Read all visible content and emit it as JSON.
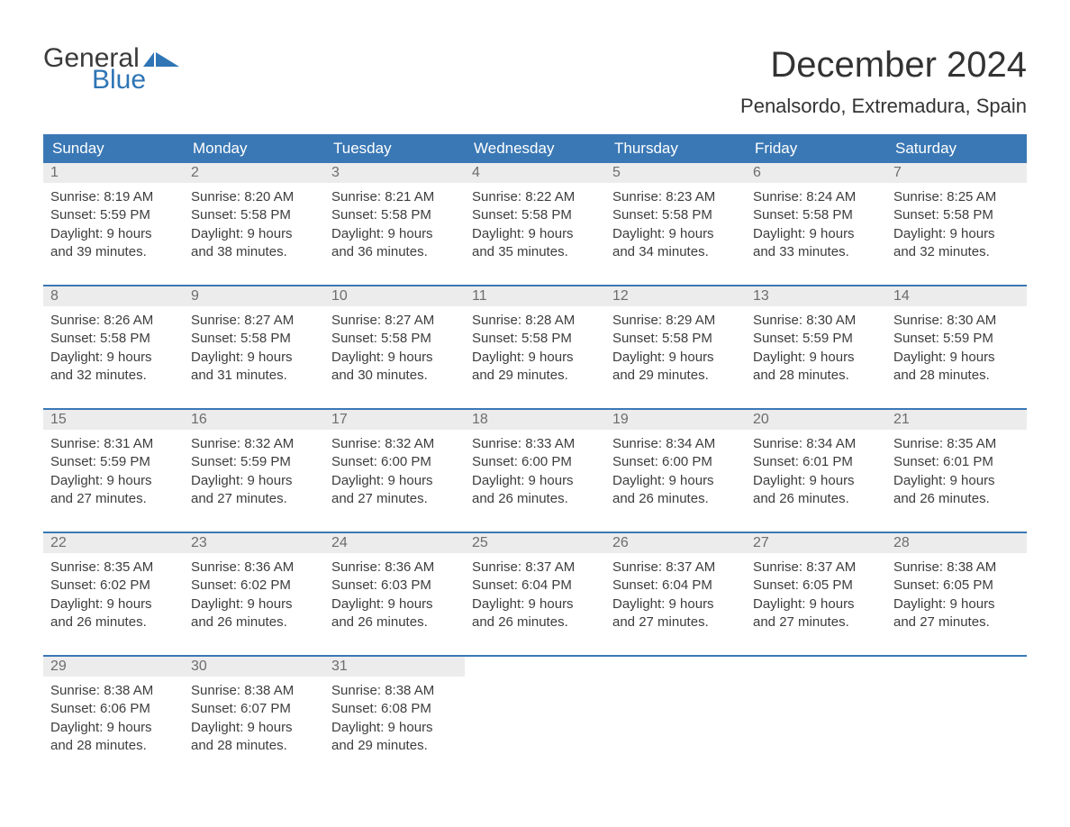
{
  "brand": {
    "word1": "General",
    "word2": "Blue",
    "flag_color": "#2f75b5",
    "text_color": "#3a3a3a",
    "blue_color": "#2f75b5"
  },
  "title": "December 2024",
  "location": "Penalsordo, Extremadura, Spain",
  "colors": {
    "header_bg": "#3a78b5",
    "header_text": "#ffffff",
    "daynum_bg": "#ececec",
    "daynum_text": "#6d6d6d",
    "body_text": "#3d3d3d",
    "week_border": "#3a78b5",
    "page_bg": "#ffffff"
  },
  "typography": {
    "title_fontsize": 40,
    "location_fontsize": 22,
    "header_fontsize": 17,
    "body_fontsize": 15
  },
  "day_names": [
    "Sunday",
    "Monday",
    "Tuesday",
    "Wednesday",
    "Thursday",
    "Friday",
    "Saturday"
  ],
  "weeks": [
    [
      {
        "n": "1",
        "sr": "Sunrise: 8:19 AM",
        "ss": "Sunset: 5:59 PM",
        "d1": "Daylight: 9 hours",
        "d2": "and 39 minutes."
      },
      {
        "n": "2",
        "sr": "Sunrise: 8:20 AM",
        "ss": "Sunset: 5:58 PM",
        "d1": "Daylight: 9 hours",
        "d2": "and 38 minutes."
      },
      {
        "n": "3",
        "sr": "Sunrise: 8:21 AM",
        "ss": "Sunset: 5:58 PM",
        "d1": "Daylight: 9 hours",
        "d2": "and 36 minutes."
      },
      {
        "n": "4",
        "sr": "Sunrise: 8:22 AM",
        "ss": "Sunset: 5:58 PM",
        "d1": "Daylight: 9 hours",
        "d2": "and 35 minutes."
      },
      {
        "n": "5",
        "sr": "Sunrise: 8:23 AM",
        "ss": "Sunset: 5:58 PM",
        "d1": "Daylight: 9 hours",
        "d2": "and 34 minutes."
      },
      {
        "n": "6",
        "sr": "Sunrise: 8:24 AM",
        "ss": "Sunset: 5:58 PM",
        "d1": "Daylight: 9 hours",
        "d2": "and 33 minutes."
      },
      {
        "n": "7",
        "sr": "Sunrise: 8:25 AM",
        "ss": "Sunset: 5:58 PM",
        "d1": "Daylight: 9 hours",
        "d2": "and 32 minutes."
      }
    ],
    [
      {
        "n": "8",
        "sr": "Sunrise: 8:26 AM",
        "ss": "Sunset: 5:58 PM",
        "d1": "Daylight: 9 hours",
        "d2": "and 32 minutes."
      },
      {
        "n": "9",
        "sr": "Sunrise: 8:27 AM",
        "ss": "Sunset: 5:58 PM",
        "d1": "Daylight: 9 hours",
        "d2": "and 31 minutes."
      },
      {
        "n": "10",
        "sr": "Sunrise: 8:27 AM",
        "ss": "Sunset: 5:58 PM",
        "d1": "Daylight: 9 hours",
        "d2": "and 30 minutes."
      },
      {
        "n": "11",
        "sr": "Sunrise: 8:28 AM",
        "ss": "Sunset: 5:58 PM",
        "d1": "Daylight: 9 hours",
        "d2": "and 29 minutes."
      },
      {
        "n": "12",
        "sr": "Sunrise: 8:29 AM",
        "ss": "Sunset: 5:58 PM",
        "d1": "Daylight: 9 hours",
        "d2": "and 29 minutes."
      },
      {
        "n": "13",
        "sr": "Sunrise: 8:30 AM",
        "ss": "Sunset: 5:59 PM",
        "d1": "Daylight: 9 hours",
        "d2": "and 28 minutes."
      },
      {
        "n": "14",
        "sr": "Sunrise: 8:30 AM",
        "ss": "Sunset: 5:59 PM",
        "d1": "Daylight: 9 hours",
        "d2": "and 28 minutes."
      }
    ],
    [
      {
        "n": "15",
        "sr": "Sunrise: 8:31 AM",
        "ss": "Sunset: 5:59 PM",
        "d1": "Daylight: 9 hours",
        "d2": "and 27 minutes."
      },
      {
        "n": "16",
        "sr": "Sunrise: 8:32 AM",
        "ss": "Sunset: 5:59 PM",
        "d1": "Daylight: 9 hours",
        "d2": "and 27 minutes."
      },
      {
        "n": "17",
        "sr": "Sunrise: 8:32 AM",
        "ss": "Sunset: 6:00 PM",
        "d1": "Daylight: 9 hours",
        "d2": "and 27 minutes."
      },
      {
        "n": "18",
        "sr": "Sunrise: 8:33 AM",
        "ss": "Sunset: 6:00 PM",
        "d1": "Daylight: 9 hours",
        "d2": "and 26 minutes."
      },
      {
        "n": "19",
        "sr": "Sunrise: 8:34 AM",
        "ss": "Sunset: 6:00 PM",
        "d1": "Daylight: 9 hours",
        "d2": "and 26 minutes."
      },
      {
        "n": "20",
        "sr": "Sunrise: 8:34 AM",
        "ss": "Sunset: 6:01 PM",
        "d1": "Daylight: 9 hours",
        "d2": "and 26 minutes."
      },
      {
        "n": "21",
        "sr": "Sunrise: 8:35 AM",
        "ss": "Sunset: 6:01 PM",
        "d1": "Daylight: 9 hours",
        "d2": "and 26 minutes."
      }
    ],
    [
      {
        "n": "22",
        "sr": "Sunrise: 8:35 AM",
        "ss": "Sunset: 6:02 PM",
        "d1": "Daylight: 9 hours",
        "d2": "and 26 minutes."
      },
      {
        "n": "23",
        "sr": "Sunrise: 8:36 AM",
        "ss": "Sunset: 6:02 PM",
        "d1": "Daylight: 9 hours",
        "d2": "and 26 minutes."
      },
      {
        "n": "24",
        "sr": "Sunrise: 8:36 AM",
        "ss": "Sunset: 6:03 PM",
        "d1": "Daylight: 9 hours",
        "d2": "and 26 minutes."
      },
      {
        "n": "25",
        "sr": "Sunrise: 8:37 AM",
        "ss": "Sunset: 6:04 PM",
        "d1": "Daylight: 9 hours",
        "d2": "and 26 minutes."
      },
      {
        "n": "26",
        "sr": "Sunrise: 8:37 AM",
        "ss": "Sunset: 6:04 PM",
        "d1": "Daylight: 9 hours",
        "d2": "and 27 minutes."
      },
      {
        "n": "27",
        "sr": "Sunrise: 8:37 AM",
        "ss": "Sunset: 6:05 PM",
        "d1": "Daylight: 9 hours",
        "d2": "and 27 minutes."
      },
      {
        "n": "28",
        "sr": "Sunrise: 8:38 AM",
        "ss": "Sunset: 6:05 PM",
        "d1": "Daylight: 9 hours",
        "d2": "and 27 minutes."
      }
    ],
    [
      {
        "n": "29",
        "sr": "Sunrise: 8:38 AM",
        "ss": "Sunset: 6:06 PM",
        "d1": "Daylight: 9 hours",
        "d2": "and 28 minutes."
      },
      {
        "n": "30",
        "sr": "Sunrise: 8:38 AM",
        "ss": "Sunset: 6:07 PM",
        "d1": "Daylight: 9 hours",
        "d2": "and 28 minutes."
      },
      {
        "n": "31",
        "sr": "Sunrise: 8:38 AM",
        "ss": "Sunset: 6:08 PM",
        "d1": "Daylight: 9 hours",
        "d2": "and 29 minutes."
      },
      {
        "empty": true
      },
      {
        "empty": true
      },
      {
        "empty": true
      },
      {
        "empty": true
      }
    ]
  ]
}
